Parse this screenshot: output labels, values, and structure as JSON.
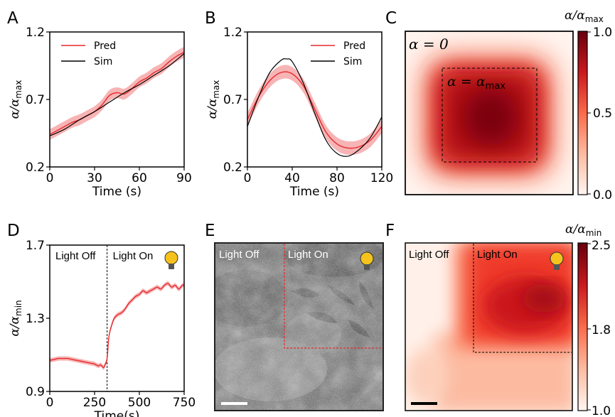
{
  "panels": {
    "A": "A",
    "B": "B",
    "C": "C",
    "D": "D",
    "E": "E",
    "F": "F"
  },
  "chart_data": [
    {
      "panel": "A",
      "type": "line",
      "xlabel": "Time (s)",
      "ylabel": "α/α",
      "ylabel_sub": "max",
      "xlim": [
        0,
        90
      ],
      "ylim": [
        0.2,
        1.2
      ],
      "xticks": [
        "0",
        "30",
        "60",
        "90"
      ],
      "yticks": [
        "0.2",
        "0.7",
        "1.2"
      ],
      "legend": {
        "placement": "top-left",
        "entries": [
          "Pred",
          "Sim"
        ]
      },
      "series": [
        {
          "name": "Pred",
          "color": "#e8292b",
          "band": 0.04,
          "x": [
            0,
            5,
            10,
            15,
            20,
            25,
            30,
            35,
            40,
            45,
            50,
            55,
            60,
            65,
            70,
            75,
            80,
            85,
            90
          ],
          "y": [
            0.44,
            0.47,
            0.5,
            0.53,
            0.55,
            0.58,
            0.61,
            0.66,
            0.73,
            0.75,
            0.74,
            0.78,
            0.83,
            0.86,
            0.9,
            0.93,
            0.98,
            1.02,
            1.05
          ]
        },
        {
          "name": "Sim",
          "color": "#000000",
          "x": [
            0,
            10,
            20,
            30,
            40,
            50,
            60,
            70,
            80,
            90
          ],
          "y": [
            0.43,
            0.48,
            0.55,
            0.61,
            0.68,
            0.75,
            0.81,
            0.88,
            0.95,
            1.04
          ]
        }
      ]
    },
    {
      "panel": "B",
      "type": "line",
      "xlabel": "Time (s)",
      "ylabel": "α/α",
      "ylabel_sub": "max",
      "xlim": [
        0,
        120
      ],
      "ylim": [
        0.2,
        1.2
      ],
      "xticks": [
        "0",
        "40",
        "80",
        "120"
      ],
      "yticks": [
        "0.2",
        "0.7",
        "1.2"
      ],
      "legend": {
        "placement": "top-right",
        "entries": [
          "Pred",
          "Sim"
        ]
      },
      "series": [
        {
          "name": "Pred",
          "color": "#e8292b",
          "band": 0.05,
          "x": [
            0,
            10,
            20,
            30,
            40,
            50,
            60,
            70,
            80,
            90,
            100,
            110,
            120
          ],
          "y": [
            0.55,
            0.72,
            0.84,
            0.9,
            0.89,
            0.8,
            0.63,
            0.46,
            0.37,
            0.34,
            0.35,
            0.4,
            0.5
          ]
        },
        {
          "name": "Sim",
          "color": "#000000",
          "x": [
            0,
            10,
            20,
            30,
            35,
            40,
            50,
            60,
            70,
            80,
            90,
            100,
            110,
            120
          ],
          "y": [
            0.5,
            0.72,
            0.9,
            0.99,
            1.0,
            0.98,
            0.82,
            0.6,
            0.4,
            0.3,
            0.28,
            0.33,
            0.42,
            0.57
          ]
        }
      ]
    },
    {
      "panel": "C",
      "type": "heatmap",
      "colorbar_label": "α/α",
      "colorbar_sub": "max",
      "colorbar_ticks": [
        "0.0",
        "0.5",
        "1.0"
      ],
      "colorbar_range": [
        0,
        1
      ],
      "annotations": [
        "α = 0",
        "α = α"
      ],
      "annotation_sub": "max"
    },
    {
      "panel": "D",
      "type": "line",
      "xlabel": "Time(s)",
      "ylabel": "α/α",
      "ylabel_sub": "min",
      "xlim": [
        0,
        750
      ],
      "ylim": [
        0.9,
        1.7
      ],
      "xticks": [
        "0",
        "250",
        "500",
        "750"
      ],
      "yticks": [
        "0.9",
        "1.3",
        "1.7"
      ],
      "annotations": [
        "Light Off",
        "Light On"
      ],
      "switch_time": 320,
      "series": [
        {
          "name": "",
          "color": "#e8292b",
          "band": 0.012,
          "x": [
            0,
            25,
            50,
            75,
            100,
            125,
            150,
            175,
            200,
            225,
            250,
            270,
            285,
            300,
            310,
            320,
            330,
            345,
            360,
            380,
            400,
            420,
            440,
            460,
            480,
            500,
            520,
            540,
            560,
            580,
            600,
            620,
            640,
            660,
            680,
            700,
            720,
            740,
            750
          ],
          "y": [
            1.07,
            1.075,
            1.08,
            1.08,
            1.08,
            1.075,
            1.07,
            1.065,
            1.06,
            1.055,
            1.05,
            1.04,
            1.045,
            1.03,
            1.05,
            1.08,
            1.2,
            1.26,
            1.3,
            1.32,
            1.33,
            1.35,
            1.38,
            1.4,
            1.42,
            1.43,
            1.45,
            1.44,
            1.45,
            1.46,
            1.47,
            1.46,
            1.48,
            1.49,
            1.47,
            1.48,
            1.46,
            1.48,
            1.48
          ]
        }
      ]
    },
    {
      "panel": "E",
      "type": "image",
      "annotations": [
        "Light Off",
        "Light On"
      ]
    },
    {
      "panel": "F",
      "type": "heatmap",
      "colorbar_label": "α/α",
      "colorbar_sub": "min",
      "colorbar_ticks": [
        "1.0",
        "1.8",
        "2.5"
      ],
      "colorbar_range": [
        1.0,
        2.5
      ],
      "annotations": [
        "Light Off",
        "Light On"
      ]
    }
  ]
}
